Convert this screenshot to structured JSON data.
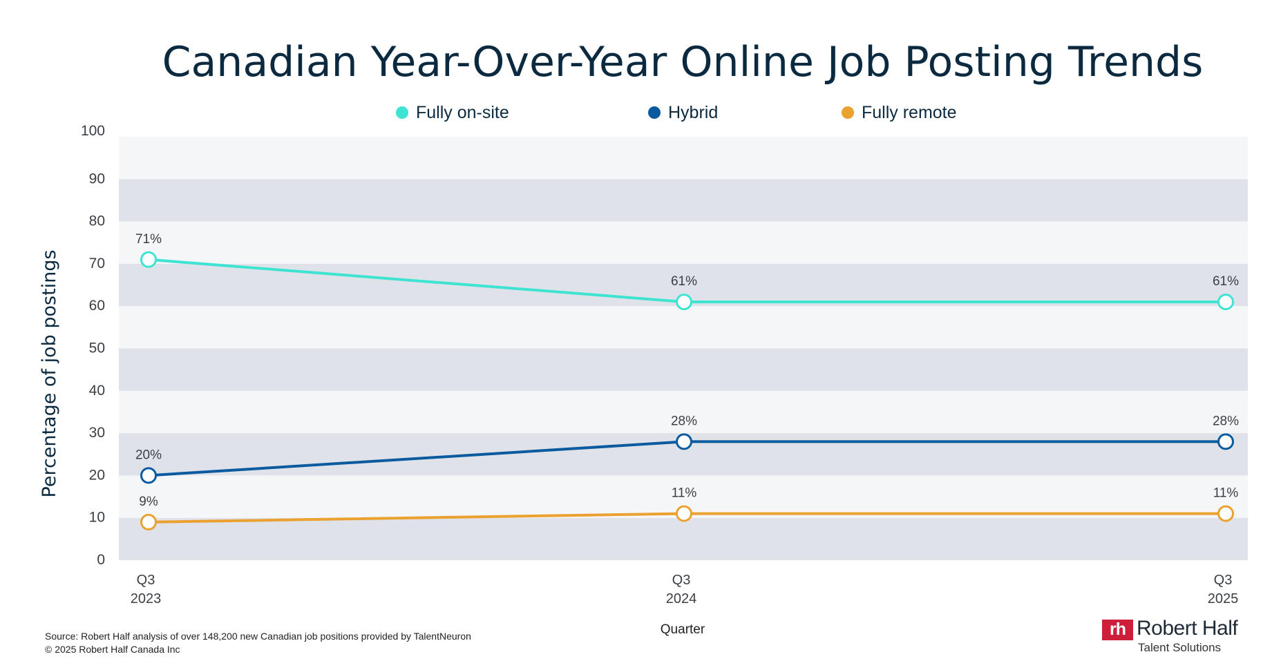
{
  "chart_data": {
    "type": "line",
    "title": "Canadian Year-Over-Year Online Job Posting Trends",
    "xlabel": "Quarter",
    "ylabel": "Percentage of job postings",
    "categories": [
      [
        "Q3",
        "2023"
      ],
      [
        "Q3",
        "2024"
      ],
      [
        "Q3",
        "2025"
      ]
    ],
    "ylim": [
      0,
      100
    ],
    "yticks": [
      0,
      10,
      20,
      30,
      40,
      50,
      60,
      70,
      80,
      90,
      100
    ],
    "grid": "alternating horizontal bands",
    "legend_position": "top",
    "series": [
      {
        "name": "Fully on-site",
        "color": "#3ee3d2",
        "values": [
          71,
          61,
          61
        ],
        "labels": [
          "71%",
          "61%",
          "61%"
        ]
      },
      {
        "name": "Hybrid",
        "color": "#0a5aa0",
        "values": [
          20,
          28,
          28
        ],
        "labels": [
          "20%",
          "28%",
          "28%"
        ]
      },
      {
        "name": "Fully remote",
        "color": "#eba130",
        "values": [
          9,
          11,
          11
        ],
        "labels": [
          "9%",
          "11%",
          "11%"
        ]
      }
    ],
    "band_colors": [
      "#dfe3e9",
      "#f5f6f8"
    ]
  },
  "footer": {
    "source": "Source: Robert Half analysis of over 148,200 new Canadian job positions provided by TalentNeuron",
    "copyright": "© 2025 Robert Half Canada Inc"
  },
  "logo": {
    "mark": "rh",
    "name": "Robert Half",
    "sub": "Talent Solutions",
    "color": "#ce1f3a"
  },
  "colors": {
    "title": "#0b2a40",
    "text": "#3a3f45"
  }
}
